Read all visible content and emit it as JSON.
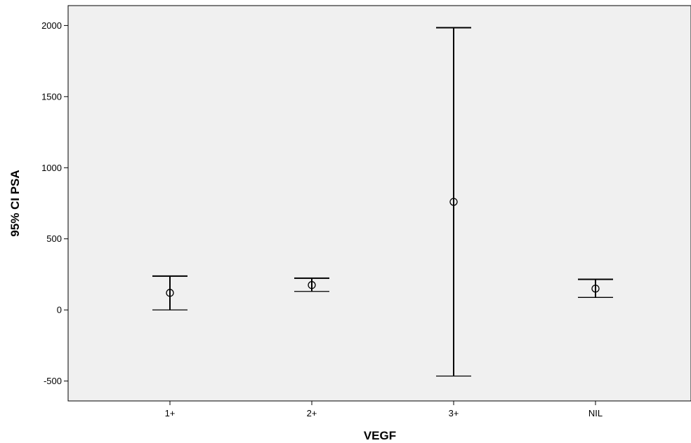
{
  "chart_data": {
    "type": "errorbar",
    "xlabel": "VEGF",
    "ylabel": "95% CI PSA",
    "categories": [
      "1+",
      "2+",
      "3+",
      "NIL"
    ],
    "mean": [
      120,
      175,
      760,
      150
    ],
    "lower": [
      0,
      130,
      -465,
      88
    ],
    "upper": [
      238,
      223,
      1985,
      215
    ],
    "ylim": [
      -640,
      2140
    ],
    "yticks": [
      -500,
      0,
      500,
      1000,
      1500,
      2000
    ],
    "grid": false,
    "colors": {
      "plot_background": "#f0f0f0",
      "marks": "#000000"
    }
  }
}
